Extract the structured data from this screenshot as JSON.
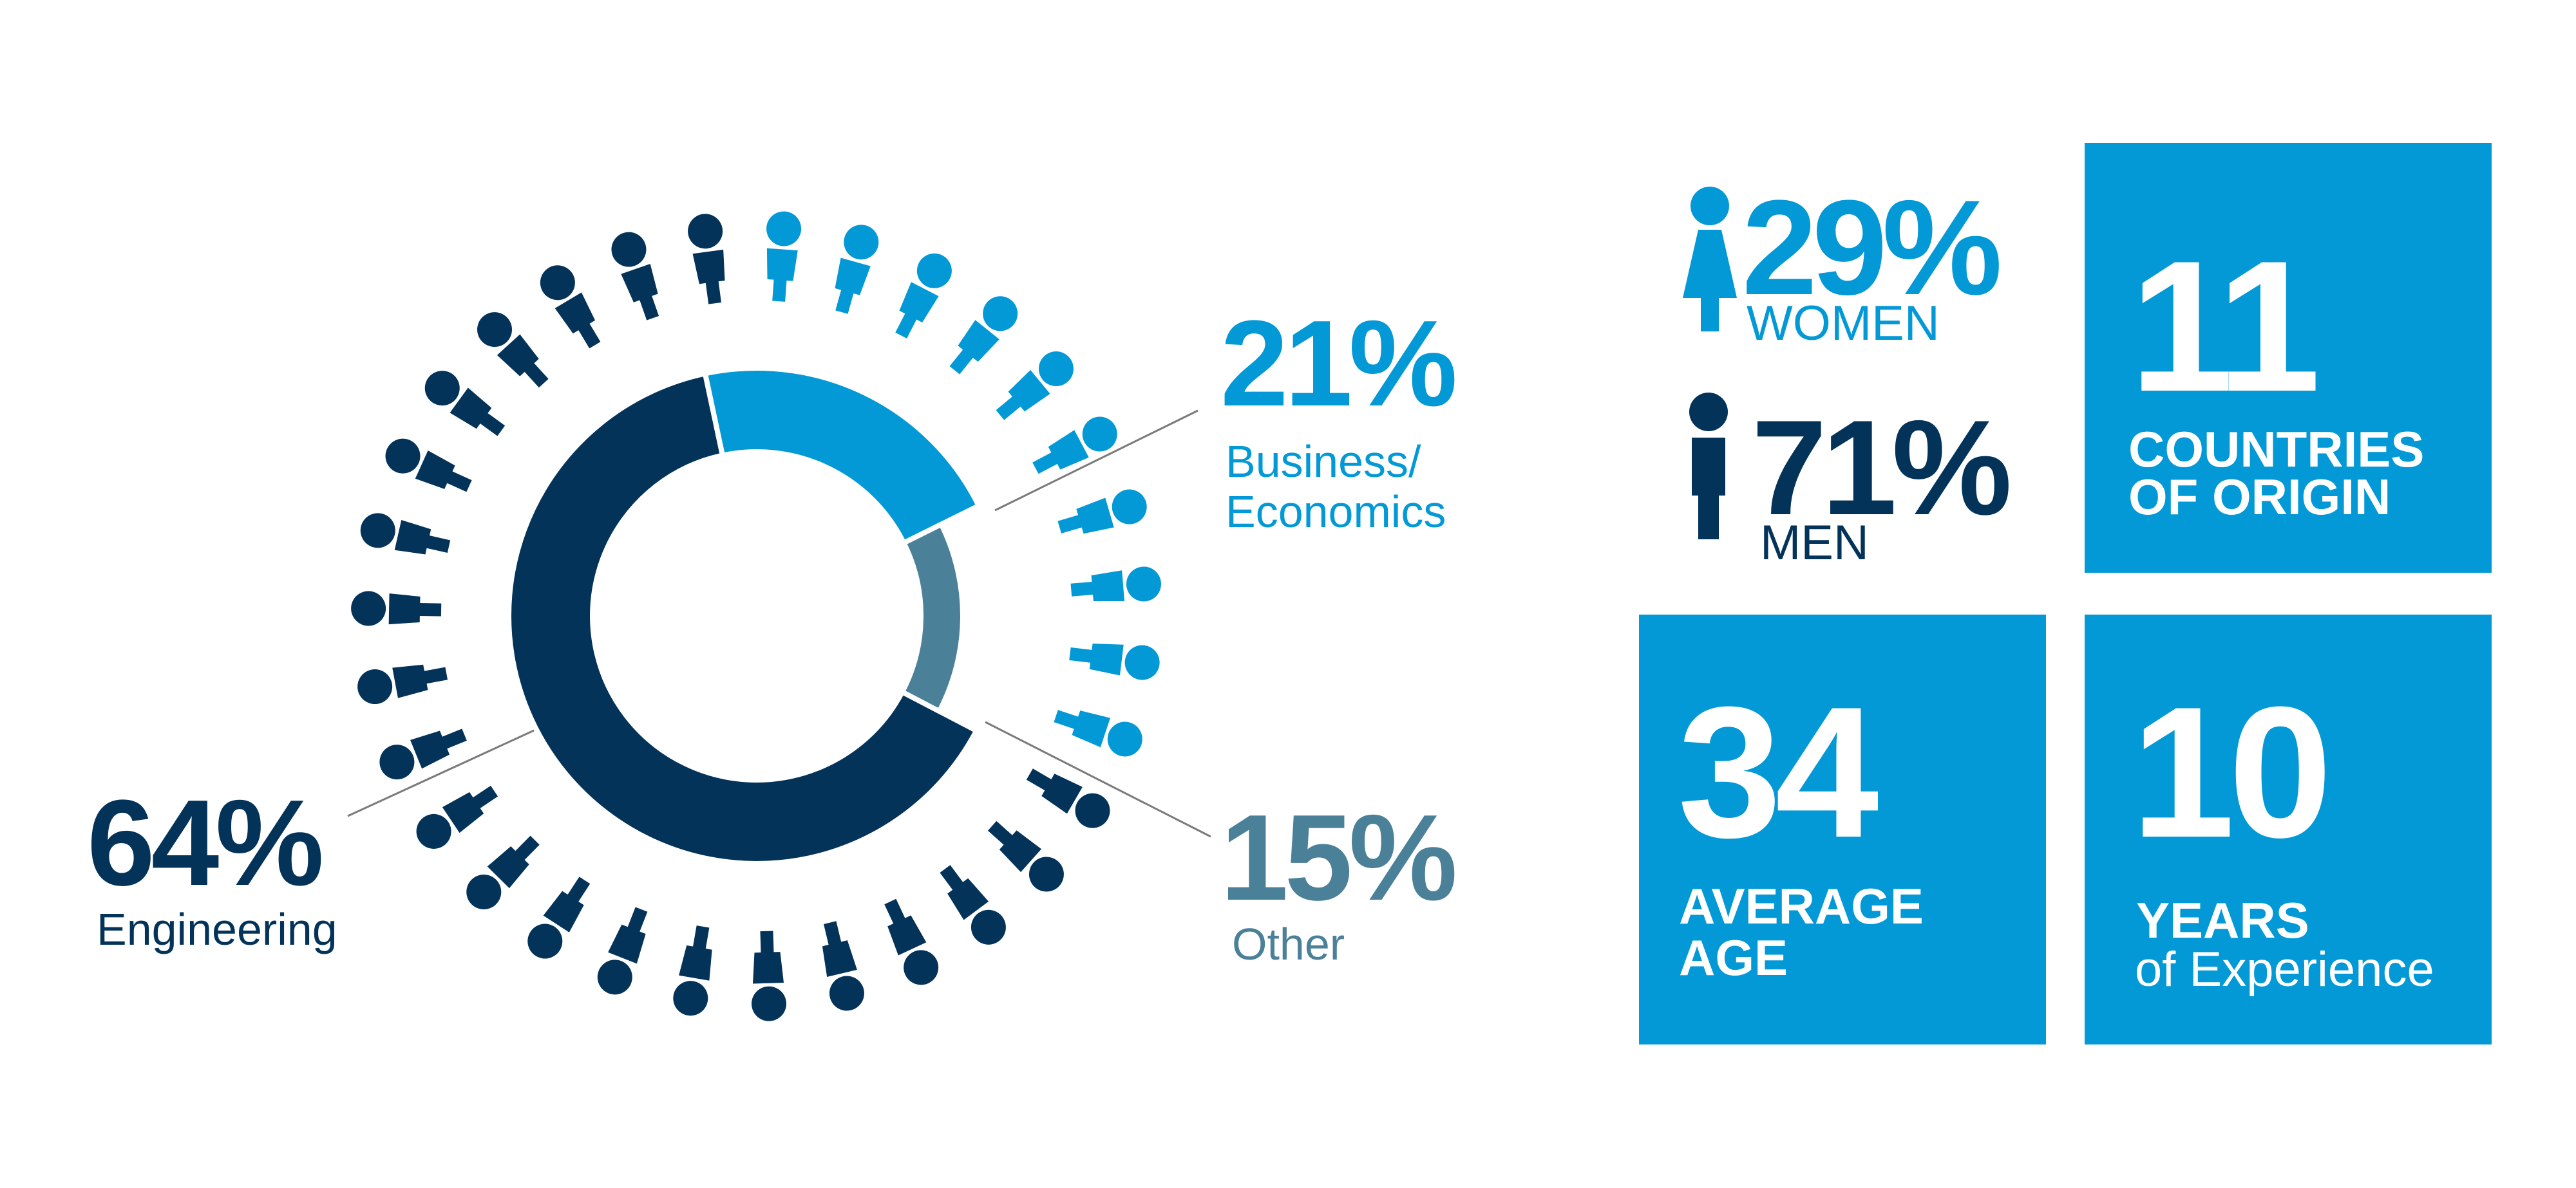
{
  "colors": {
    "engineering": "#04335a",
    "business": "#0399d6",
    "other": "#4b8099",
    "box_bg": "#0399d6",
    "leader_line": "#7a7a7a"
  },
  "icon_names": [
    "person-icon",
    "woman-icon",
    "man-icon"
  ],
  "chart_data": {
    "type": "pie",
    "variant": "donut",
    "categories": [
      "Engineering",
      "Business/ Economics",
      "Other"
    ],
    "values": [
      64,
      21,
      15
    ],
    "labels": [
      {
        "pct": "64%",
        "name": "Engineering"
      },
      {
        "pct": "21%",
        "name": "Business/ Economics"
      },
      {
        "pct": "15%",
        "name": "Other"
      }
    ],
    "people_ring": {
      "total": 31,
      "counts": [
        21,
        10,
        0
      ],
      "icon": "person-icon"
    }
  },
  "gender": {
    "women": {
      "pct": "29%",
      "label": "WOMEN",
      "icon": "woman-icon"
    },
    "men": {
      "pct": "71%",
      "label": "MEN",
      "icon": "man-icon"
    }
  },
  "stats": {
    "countries": {
      "number": "11",
      "line1": "COUNTRIES",
      "line2": "OF ORIGIN"
    },
    "age": {
      "number": "34",
      "line1": "AVERAGE",
      "line2": "AGE"
    },
    "experience": {
      "number": "10",
      "line1": "YEARS",
      "line2": "of Experience"
    }
  }
}
